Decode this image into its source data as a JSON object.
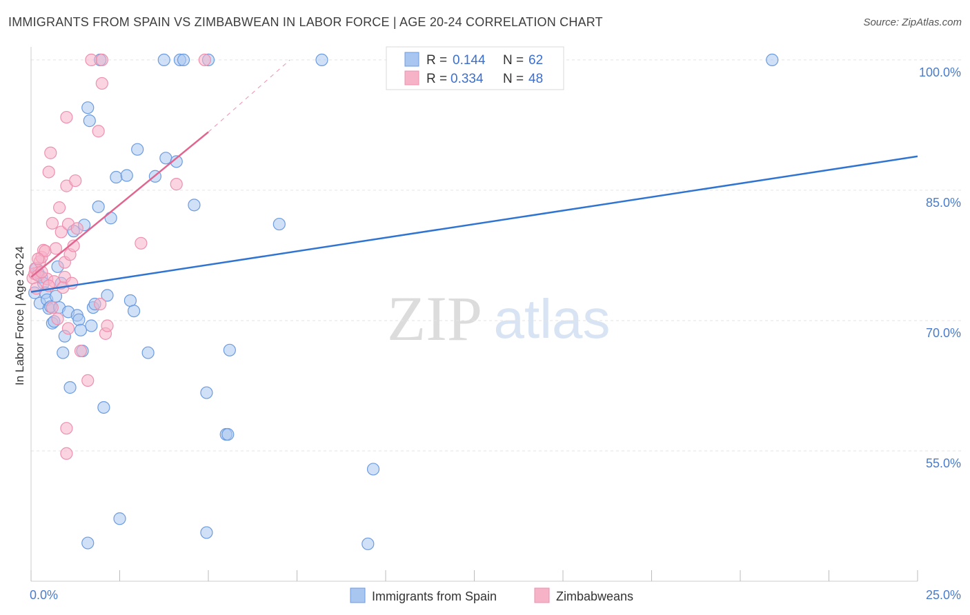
{
  "title": "IMMIGRANTS FROM SPAIN VS ZIMBABWEAN IN LABOR FORCE | AGE 20-24 CORRELATION CHART",
  "source": "Source: ZipAtlas.com",
  "colors": {
    "spain_fill": "#a9c6f0",
    "spain_stroke": "#6b9be0",
    "spain_line": "#2f74d0",
    "zim_fill": "#f6b3c8",
    "zim_stroke": "#ee8fae",
    "zim_line": "#e06690",
    "axis_text": "#4a7cc9",
    "grid": "#e3e3e3"
  },
  "legend": {
    "spain": {
      "r_label": "R =",
      "r_value": "0.144",
      "n_label": "N =",
      "n_value": "62"
    },
    "zim": {
      "r_label": "R =",
      "r_value": "0.334",
      "n_label": "N =",
      "n_value": "48"
    }
  },
  "bottom_legend": {
    "spain": "Immigrants from Spain",
    "zim": "Zimbabweans"
  },
  "watermark": {
    "zip": "ZIP",
    "atlas": "atlas"
  },
  "chart_data": {
    "type": "scatter",
    "title": "IMMIGRANTS FROM SPAIN VS ZIMBABWEAN IN LABOR FORCE | AGE 20-24 CORRELATION CHART",
    "xlabel": "",
    "ylabel": "In Labor Force | Age 20-24",
    "xlim": [
      0,
      25
    ],
    "ylim": [
      40,
      101.5
    ],
    "x_tick_labels": [
      {
        "value": 0,
        "label": "0.0%"
      },
      {
        "value": 25,
        "label": "25.0%"
      }
    ],
    "y_tick_labels": [
      {
        "value": 100,
        "label": "100.0%"
      },
      {
        "value": 85,
        "label": "85.0%"
      },
      {
        "value": 70,
        "label": "70.0%"
      },
      {
        "value": 55,
        "label": "55.0%"
      }
    ],
    "series": [
      {
        "name": "Immigrants from Spain",
        "points": [
          [
            0.1,
            73.2
          ],
          [
            0.15,
            76.0
          ],
          [
            0.2,
            75.5
          ],
          [
            0.25,
            72.0
          ],
          [
            0.3,
            75.0
          ],
          [
            0.35,
            74.3
          ],
          [
            0.4,
            73.2
          ],
          [
            0.45,
            72.4
          ],
          [
            0.5,
            71.4
          ],
          [
            0.55,
            71.6
          ],
          [
            0.6,
            69.7
          ],
          [
            0.65,
            69.9
          ],
          [
            0.7,
            72.8
          ],
          [
            0.75,
            76.2
          ],
          [
            0.8,
            71.5
          ],
          [
            0.85,
            74.3
          ],
          [
            0.9,
            66.3
          ],
          [
            0.95,
            68.2
          ],
          [
            1.05,
            71.0
          ],
          [
            1.1,
            62.3
          ],
          [
            1.2,
            80.3
          ],
          [
            1.3,
            70.6
          ],
          [
            1.35,
            70.1
          ],
          [
            1.4,
            68.9
          ],
          [
            1.45,
            66.5
          ],
          [
            1.5,
            81.0
          ],
          [
            1.6,
            94.5
          ],
          [
            1.65,
            93.0
          ],
          [
            1.7,
            69.4
          ],
          [
            1.75,
            71.5
          ],
          [
            1.8,
            71.9
          ],
          [
            1.9,
            83.1
          ],
          [
            1.95,
            100.0
          ],
          [
            2.05,
            60.0
          ],
          [
            2.15,
            72.9
          ],
          [
            2.25,
            81.8
          ],
          [
            2.4,
            86.5
          ],
          [
            2.5,
            47.2
          ],
          [
            2.7,
            86.7
          ],
          [
            2.8,
            72.3
          ],
          [
            2.9,
            71.1
          ],
          [
            3.0,
            89.7
          ],
          [
            3.3,
            66.3
          ],
          [
            3.5,
            86.6
          ],
          [
            3.8,
            88.7
          ],
          [
            4.1,
            88.3
          ],
          [
            3.75,
            100.0
          ],
          [
            4.2,
            100.0
          ],
          [
            4.3,
            100.0
          ],
          [
            4.6,
            83.3
          ],
          [
            5.0,
            100.0
          ],
          [
            4.95,
            61.7
          ],
          [
            5.5,
            56.9
          ],
          [
            5.55,
            56.9
          ],
          [
            5.6,
            66.6
          ],
          [
            7.0,
            81.1
          ],
          [
            8.2,
            100.0
          ],
          [
            9.5,
            44.3
          ],
          [
            9.65,
            52.9
          ],
          [
            1.6,
            44.4
          ],
          [
            4.95,
            45.6
          ],
          [
            20.9,
            100.0
          ]
        ],
        "trendline": {
          "x": [
            0,
            25
          ],
          "y": [
            73.3,
            88.9
          ]
        }
      },
      {
        "name": "Zimbabweans",
        "points": [
          [
            0.05,
            74.9
          ],
          [
            0.1,
            75.4
          ],
          [
            0.12,
            76.0
          ],
          [
            0.15,
            73.7
          ],
          [
            0.2,
            75.2
          ],
          [
            0.25,
            76.8
          ],
          [
            0.3,
            77.3
          ],
          [
            0.35,
            78.1
          ],
          [
            0.4,
            78.0
          ],
          [
            0.45,
            74.8
          ],
          [
            0.5,
            87.1
          ],
          [
            0.55,
            89.3
          ],
          [
            0.6,
            81.2
          ],
          [
            0.65,
            74.5
          ],
          [
            0.7,
            78.3
          ],
          [
            0.75,
            70.2
          ],
          [
            0.8,
            83.0
          ],
          [
            0.85,
            80.2
          ],
          [
            0.9,
            73.8
          ],
          [
            0.95,
            75.0
          ],
          [
            1.0,
            85.5
          ],
          [
            1.05,
            69.1
          ],
          [
            0.95,
            76.7
          ],
          [
            1.1,
            77.6
          ],
          [
            1.15,
            74.3
          ],
          [
            1.0,
            93.4
          ],
          [
            1.0,
            57.6
          ],
          [
            1.0,
            54.7
          ],
          [
            1.05,
            81.1
          ],
          [
            1.2,
            78.6
          ],
          [
            1.25,
            86.1
          ],
          [
            1.3,
            80.6
          ],
          [
            1.4,
            66.5
          ],
          [
            1.6,
            63.1
          ],
          [
            1.7,
            100.0
          ],
          [
            1.9,
            91.8
          ],
          [
            1.95,
            71.9
          ],
          [
            2.0,
            100.0
          ],
          [
            2.0,
            97.3
          ],
          [
            2.1,
            68.5
          ],
          [
            2.15,
            69.4
          ],
          [
            3.1,
            78.9
          ],
          [
            4.1,
            85.7
          ],
          [
            4.9,
            100.0
          ],
          [
            0.2,
            77.1
          ],
          [
            0.3,
            75.6
          ],
          [
            0.5,
            74.0
          ],
          [
            0.6,
            71.5
          ]
        ],
        "trendline": {
          "x": [
            0,
            5.0
          ],
          "y": [
            75.0,
            91.7
          ]
        },
        "trendline_dashed_extension": {
          "x": [
            5.0,
            7.3
          ],
          "y": [
            91.7,
            100.0
          ]
        }
      }
    ]
  }
}
